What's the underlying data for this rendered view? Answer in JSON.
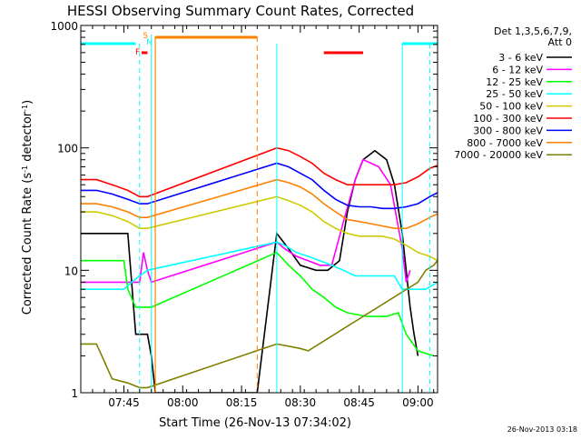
{
  "chart_data": {
    "type": "line",
    "title": "HESSI Observing Summary Count Rates, Corrected",
    "xlabel": "Start Time (26-Nov-13 07:34:02)",
    "ylabel_main": "Corrected Count Rate (s",
    "ylabel_sup1": "-1",
    "ylabel_mid": " detector",
    "ylabel_sup2": "-1",
    "ylabel_end": ")",
    "y_scale": "log",
    "ylim": [
      1,
      1000
    ],
    "xlim_minutes": [
      0,
      91
    ],
    "x_ticks": [
      {
        "minute": 11,
        "label": "07:45"
      },
      {
        "minute": 26,
        "label": "08:00"
      },
      {
        "minute": 41,
        "label": "08:15"
      },
      {
        "minute": 56,
        "label": "08:30"
      },
      {
        "minute": 71,
        "label": "08:45"
      },
      {
        "minute": 86,
        "label": "09:00"
      }
    ],
    "y_ticks": [
      {
        "value": 1,
        "label": "1"
      },
      {
        "value": 10,
        "label": "10"
      },
      {
        "value": 100,
        "label": "100"
      },
      {
        "value": 1000,
        "label": "1000"
      }
    ],
    "legend_header": [
      "Det 1,3,5,6,7,9,",
      "Att 0"
    ],
    "legend_placement": "right",
    "flag_labels": {
      "saa": "S",
      "flare": "F",
      "night": "N"
    },
    "timestamp": "26-Nov-2013 03:18",
    "series": [
      {
        "name": "3 - 6 keV",
        "color": "#000000",
        "points": [
          [
            0,
            20
          ],
          [
            4,
            20
          ],
          [
            8,
            20
          ],
          [
            12,
            20
          ],
          [
            14,
            3
          ],
          [
            17,
            3
          ],
          [
            18,
            2
          ],
          [
            19,
            1
          ],
          [
            30,
            1
          ],
          [
            45,
            1
          ],
          [
            50,
            20
          ],
          [
            53,
            15
          ],
          [
            56,
            11
          ],
          [
            60,
            10
          ],
          [
            63,
            10
          ],
          [
            66,
            12
          ],
          [
            68,
            30
          ],
          [
            70,
            55
          ],
          [
            72,
            80
          ],
          [
            75,
            95
          ],
          [
            78,
            80
          ],
          [
            80,
            50
          ],
          [
            82,
            20
          ],
          [
            84,
            5
          ],
          [
            85,
            3
          ],
          [
            86,
            2
          ]
        ]
      },
      {
        "name": "6 - 12 keV",
        "color": "#ff00ff",
        "points": [
          [
            0,
            8
          ],
          [
            4,
            8
          ],
          [
            8,
            8
          ],
          [
            12,
            8
          ],
          [
            15,
            8
          ],
          [
            16,
            14
          ],
          [
            17,
            10
          ],
          [
            18,
            8
          ],
          [
            50,
            17
          ],
          [
            52,
            15
          ],
          [
            55,
            13
          ],
          [
            58,
            12
          ],
          [
            61,
            11
          ],
          [
            64,
            11
          ],
          [
            67,
            25
          ],
          [
            70,
            55
          ],
          [
            72,
            80
          ],
          [
            74,
            75
          ],
          [
            76,
            70
          ],
          [
            79,
            50
          ],
          [
            82,
            15
          ],
          [
            83,
            8
          ],
          [
            84,
            10
          ]
        ]
      },
      {
        "name": "12 - 25 keV",
        "color": "#00ff00",
        "points": [
          [
            0,
            12
          ],
          [
            4,
            12
          ],
          [
            8,
            12
          ],
          [
            11,
            12
          ],
          [
            12,
            7
          ],
          [
            14,
            5
          ],
          [
            17,
            5
          ],
          [
            18,
            5
          ],
          [
            50,
            14
          ],
          [
            53,
            11
          ],
          [
            56,
            9
          ],
          [
            59,
            7
          ],
          [
            62,
            6
          ],
          [
            65,
            5
          ],
          [
            68,
            4.5
          ],
          [
            73,
            4.2
          ],
          [
            78,
            4.2
          ],
          [
            81,
            4.5
          ],
          [
            83,
            3
          ],
          [
            86,
            2.2
          ],
          [
            90,
            2
          ]
        ]
      },
      {
        "name": "25 - 50 keV",
        "color": "#00ffff",
        "points": [
          [
            0,
            7
          ],
          [
            4,
            7
          ],
          [
            8,
            7
          ],
          [
            11,
            7
          ],
          [
            13,
            8
          ],
          [
            15,
            9
          ],
          [
            17,
            10
          ],
          [
            50,
            17
          ],
          [
            52,
            16
          ],
          [
            55,
            14
          ],
          [
            58,
            13
          ],
          [
            61,
            12
          ],
          [
            64,
            11
          ],
          [
            67,
            10
          ],
          [
            70,
            9
          ],
          [
            73,
            9
          ],
          [
            76,
            9
          ],
          [
            78,
            9
          ],
          [
            80,
            9
          ],
          [
            82,
            7
          ],
          [
            85,
            7
          ],
          [
            88,
            7
          ],
          [
            91,
            8
          ]
        ]
      },
      {
        "name": "50 - 100 keV",
        "color": "#cccc00",
        "points": [
          [
            0,
            30
          ],
          [
            4,
            30
          ],
          [
            8,
            28
          ],
          [
            12,
            25
          ],
          [
            15,
            22
          ],
          [
            17,
            22
          ],
          [
            50,
            40
          ],
          [
            53,
            37
          ],
          [
            56,
            34
          ],
          [
            59,
            30
          ],
          [
            62,
            25
          ],
          [
            65,
            22
          ],
          [
            68,
            20
          ],
          [
            71,
            19
          ],
          [
            74,
            19
          ],
          [
            77,
            19
          ],
          [
            80,
            18
          ],
          [
            83,
            16
          ],
          [
            86,
            14
          ],
          [
            89,
            13
          ],
          [
            91,
            12
          ]
        ]
      },
      {
        "name": "100 - 300 keV",
        "color": "#ff0000",
        "points": [
          [
            0,
            55
          ],
          [
            4,
            55
          ],
          [
            8,
            50
          ],
          [
            12,
            45
          ],
          [
            15,
            40
          ],
          [
            17,
            40
          ],
          [
            50,
            100
          ],
          [
            53,
            95
          ],
          [
            56,
            85
          ],
          [
            59,
            75
          ],
          [
            62,
            62
          ],
          [
            65,
            55
          ],
          [
            68,
            50
          ],
          [
            71,
            50
          ],
          [
            74,
            50
          ],
          [
            77,
            50
          ],
          [
            80,
            50
          ],
          [
            83,
            52
          ],
          [
            86,
            58
          ],
          [
            89,
            68
          ],
          [
            91,
            72
          ]
        ]
      },
      {
        "name": "300 - 800 keV",
        "color": "#0000ff",
        "points": [
          [
            0,
            45
          ],
          [
            4,
            45
          ],
          [
            8,
            42
          ],
          [
            12,
            38
          ],
          [
            15,
            35
          ],
          [
            17,
            35
          ],
          [
            50,
            75
          ],
          [
            53,
            70
          ],
          [
            56,
            62
          ],
          [
            59,
            55
          ],
          [
            62,
            45
          ],
          [
            65,
            38
          ],
          [
            68,
            34
          ],
          [
            71,
            33
          ],
          [
            74,
            33
          ],
          [
            77,
            32
          ],
          [
            80,
            32
          ],
          [
            83,
            33
          ],
          [
            86,
            35
          ],
          [
            89,
            40
          ],
          [
            91,
            43
          ]
        ]
      },
      {
        "name": "800 - 7000 keV",
        "color": "#ff8000",
        "points": [
          [
            0,
            35
          ],
          [
            4,
            35
          ],
          [
            8,
            33
          ],
          [
            12,
            30
          ],
          [
            15,
            27
          ],
          [
            17,
            27
          ],
          [
            50,
            55
          ],
          [
            53,
            52
          ],
          [
            56,
            48
          ],
          [
            59,
            42
          ],
          [
            62,
            35
          ],
          [
            65,
            30
          ],
          [
            68,
            26
          ],
          [
            71,
            25
          ],
          [
            74,
            24
          ],
          [
            77,
            23
          ],
          [
            80,
            22
          ],
          [
            83,
            22
          ],
          [
            86,
            24
          ],
          [
            89,
            27
          ],
          [
            91,
            29
          ]
        ]
      },
      {
        "name": "7000 - 20000 keV",
        "color": "#808000",
        "points": [
          [
            0,
            2.5
          ],
          [
            4,
            2.5
          ],
          [
            8,
            1.3
          ],
          [
            12,
            1.2
          ],
          [
            15,
            1.1
          ],
          [
            17,
            1.1
          ],
          [
            50,
            2.5
          ],
          [
            53,
            2.4
          ],
          [
            56,
            2.3
          ],
          [
            58,
            2.2
          ],
          [
            86,
            8
          ],
          [
            88,
            10
          ],
          [
            90,
            11
          ],
          [
            91,
            12
          ]
        ]
      }
    ]
  }
}
